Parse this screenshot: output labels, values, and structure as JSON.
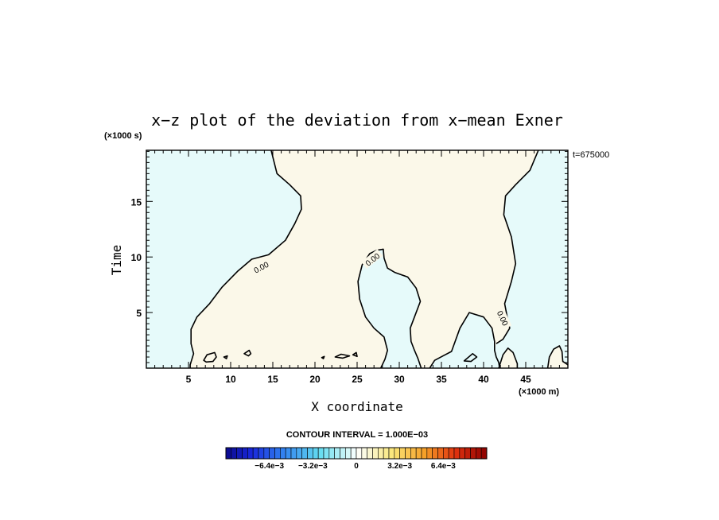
{
  "chart_data": {
    "type": "contour",
    "title": "x−z plot of the deviation from x−mean Exner",
    "xlabel": "X coordinate",
    "ylabel": "Time",
    "x_unit": "(×1000 m)",
    "y_unit": "(×1000 s)",
    "time_label": "t=675000",
    "xlim": [
      0,
      50
    ],
    "ylim": [
      0,
      19.6
    ],
    "x_ticks": [
      5,
      10,
      15,
      20,
      25,
      30,
      35,
      40,
      45
    ],
    "y_ticks": [
      5,
      10,
      15
    ],
    "contour_interval_text": "CONTOUR INTERVAL = 1.000E−03",
    "contour_level_label": "0.00",
    "colorbar_tick_labels": [
      "−6.4e−3",
      "−3.2e−3",
      "0",
      "3.2e−3",
      "6.4e−3"
    ],
    "colorbar_tick_values": [
      -0.0064,
      -0.0032,
      0,
      0.0032,
      0.0064
    ],
    "colorbar_range": [
      -0.0096,
      0.0096
    ],
    "colorbar_n": 48,
    "fill_colors": {
      "negative": "#e6fafa",
      "positive": "#fbf8e9"
    },
    "zero_contours": [
      {
        "closed": false,
        "points": [
          [
            14.8,
            19.6
          ],
          [
            15.5,
            17.5
          ],
          [
            17,
            16.5
          ],
          [
            18.3,
            15.5
          ],
          [
            18.4,
            14.3
          ],
          [
            17.6,
            13
          ],
          [
            16.5,
            11.5
          ],
          [
            14.5,
            10.2
          ],
          [
            12.5,
            9.8
          ],
          [
            10.8,
            8.7
          ],
          [
            9,
            7.3
          ],
          [
            7.5,
            5.8
          ],
          [
            6,
            4.6
          ],
          [
            5.3,
            3.5
          ],
          [
            5.3,
            2.2
          ],
          [
            5.6,
            1.3
          ],
          [
            5.2,
            0.3
          ],
          [
            5.2,
            0
          ]
        ]
      },
      {
        "closed": false,
        "points": [
          [
            27.8,
            0
          ],
          [
            28.3,
            0.8
          ],
          [
            28.6,
            1.6
          ],
          [
            28.2,
            2.8
          ],
          [
            27,
            3.6
          ],
          [
            26,
            4.6
          ],
          [
            25.3,
            6.2
          ],
          [
            25.1,
            7.8
          ],
          [
            25.6,
            9.3
          ],
          [
            26.5,
            10.3
          ],
          [
            27.3,
            10.6
          ],
          [
            28.1,
            10.7
          ],
          [
            28.2,
            9.9
          ],
          [
            28.6,
            9
          ],
          [
            29.5,
            8.6
          ],
          [
            31,
            8.2
          ],
          [
            32,
            7.2
          ],
          [
            32.5,
            6
          ],
          [
            31.8,
            4.6
          ],
          [
            31.3,
            3.6
          ],
          [
            31.4,
            2.4
          ],
          [
            31.8,
            1.6
          ],
          [
            32.2,
            0.9
          ],
          [
            32.6,
            0
          ]
        ]
      },
      {
        "closed": false,
        "points": [
          [
            33.6,
            0
          ],
          [
            34.2,
            0.7
          ],
          [
            35.2,
            1.1
          ],
          [
            36.2,
            1.5
          ],
          [
            37.2,
            3.6
          ],
          [
            38.3,
            5
          ],
          [
            40,
            4.6
          ],
          [
            41,
            3.6
          ],
          [
            41.3,
            2.4
          ],
          [
            41.3,
            1.6
          ],
          [
            41.5,
            1
          ],
          [
            41.8,
            0.5
          ],
          [
            41.9,
            0
          ]
        ]
      },
      {
        "closed": false,
        "points": [
          [
            41.5,
            2.2
          ],
          [
            42.3,
            2.6
          ],
          [
            43.1,
            3.6
          ],
          [
            42.8,
            4.6
          ],
          [
            42.5,
            5.8
          ],
          [
            43.3,
            7.8
          ],
          [
            43.8,
            9.4
          ],
          [
            43.3,
            11.8
          ],
          [
            42.4,
            13.8
          ],
          [
            42.6,
            15.5
          ],
          [
            43.8,
            16.5
          ],
          [
            45.5,
            17.8
          ],
          [
            46.5,
            19.6
          ]
        ]
      },
      {
        "closed": false,
        "points": [
          [
            41.8,
            0
          ],
          [
            42.3,
            1.2
          ],
          [
            42.9,
            1.8
          ],
          [
            43.5,
            1.4
          ],
          [
            44,
            0.4
          ],
          [
            44,
            0
          ]
        ]
      },
      {
        "closed": false,
        "points": [
          [
            47.6,
            0
          ],
          [
            47.8,
            1
          ],
          [
            48.3,
            1.7
          ],
          [
            49,
            2
          ],
          [
            49.3,
            1.5
          ],
          [
            49.4,
            0.6
          ],
          [
            50,
            0.3
          ]
        ]
      },
      {
        "closed": true,
        "points": [
          [
            6.8,
            0.7
          ],
          [
            7.2,
            1.2
          ],
          [
            8.1,
            1.4
          ],
          [
            8.3,
            1
          ],
          [
            7.9,
            0.6
          ],
          [
            7.1,
            0.55
          ]
        ]
      },
      {
        "closed": true,
        "points": [
          [
            11.6,
            1.3
          ],
          [
            12.2,
            1.6
          ],
          [
            12.4,
            1.3
          ],
          [
            12.1,
            1.1
          ]
        ]
      },
      {
        "closed": true,
        "points": [
          [
            22.4,
            1.0
          ],
          [
            23.1,
            1.25
          ],
          [
            24.1,
            1.1
          ],
          [
            23.3,
            0.9
          ]
        ]
      },
      {
        "closed": true,
        "points": [
          [
            24.5,
            1.2
          ],
          [
            24.9,
            1.4
          ],
          [
            25,
            1.05
          ]
        ]
      },
      {
        "closed": true,
        "points": [
          [
            37.7,
            0.65
          ],
          [
            38.7,
            1.3
          ],
          [
            39.2,
            1.0
          ],
          [
            38.5,
            0.6
          ]
        ]
      },
      {
        "closed": true,
        "points": [
          [
            9.2,
            1.0
          ],
          [
            9.6,
            1.1
          ],
          [
            9.5,
            0.85
          ]
        ]
      },
      {
        "closed": true,
        "points": [
          [
            20.8,
            0.95
          ],
          [
            21.1,
            1.05
          ],
          [
            21.0,
            0.85
          ]
        ]
      }
    ],
    "contour_labels": [
      {
        "x": 13.6,
        "y": 9.1,
        "angle": -28
      },
      {
        "x": 26.8,
        "y": 9.8,
        "angle": -38
      },
      {
        "x": 42.3,
        "y": 4.5,
        "angle": 65
      }
    ]
  }
}
